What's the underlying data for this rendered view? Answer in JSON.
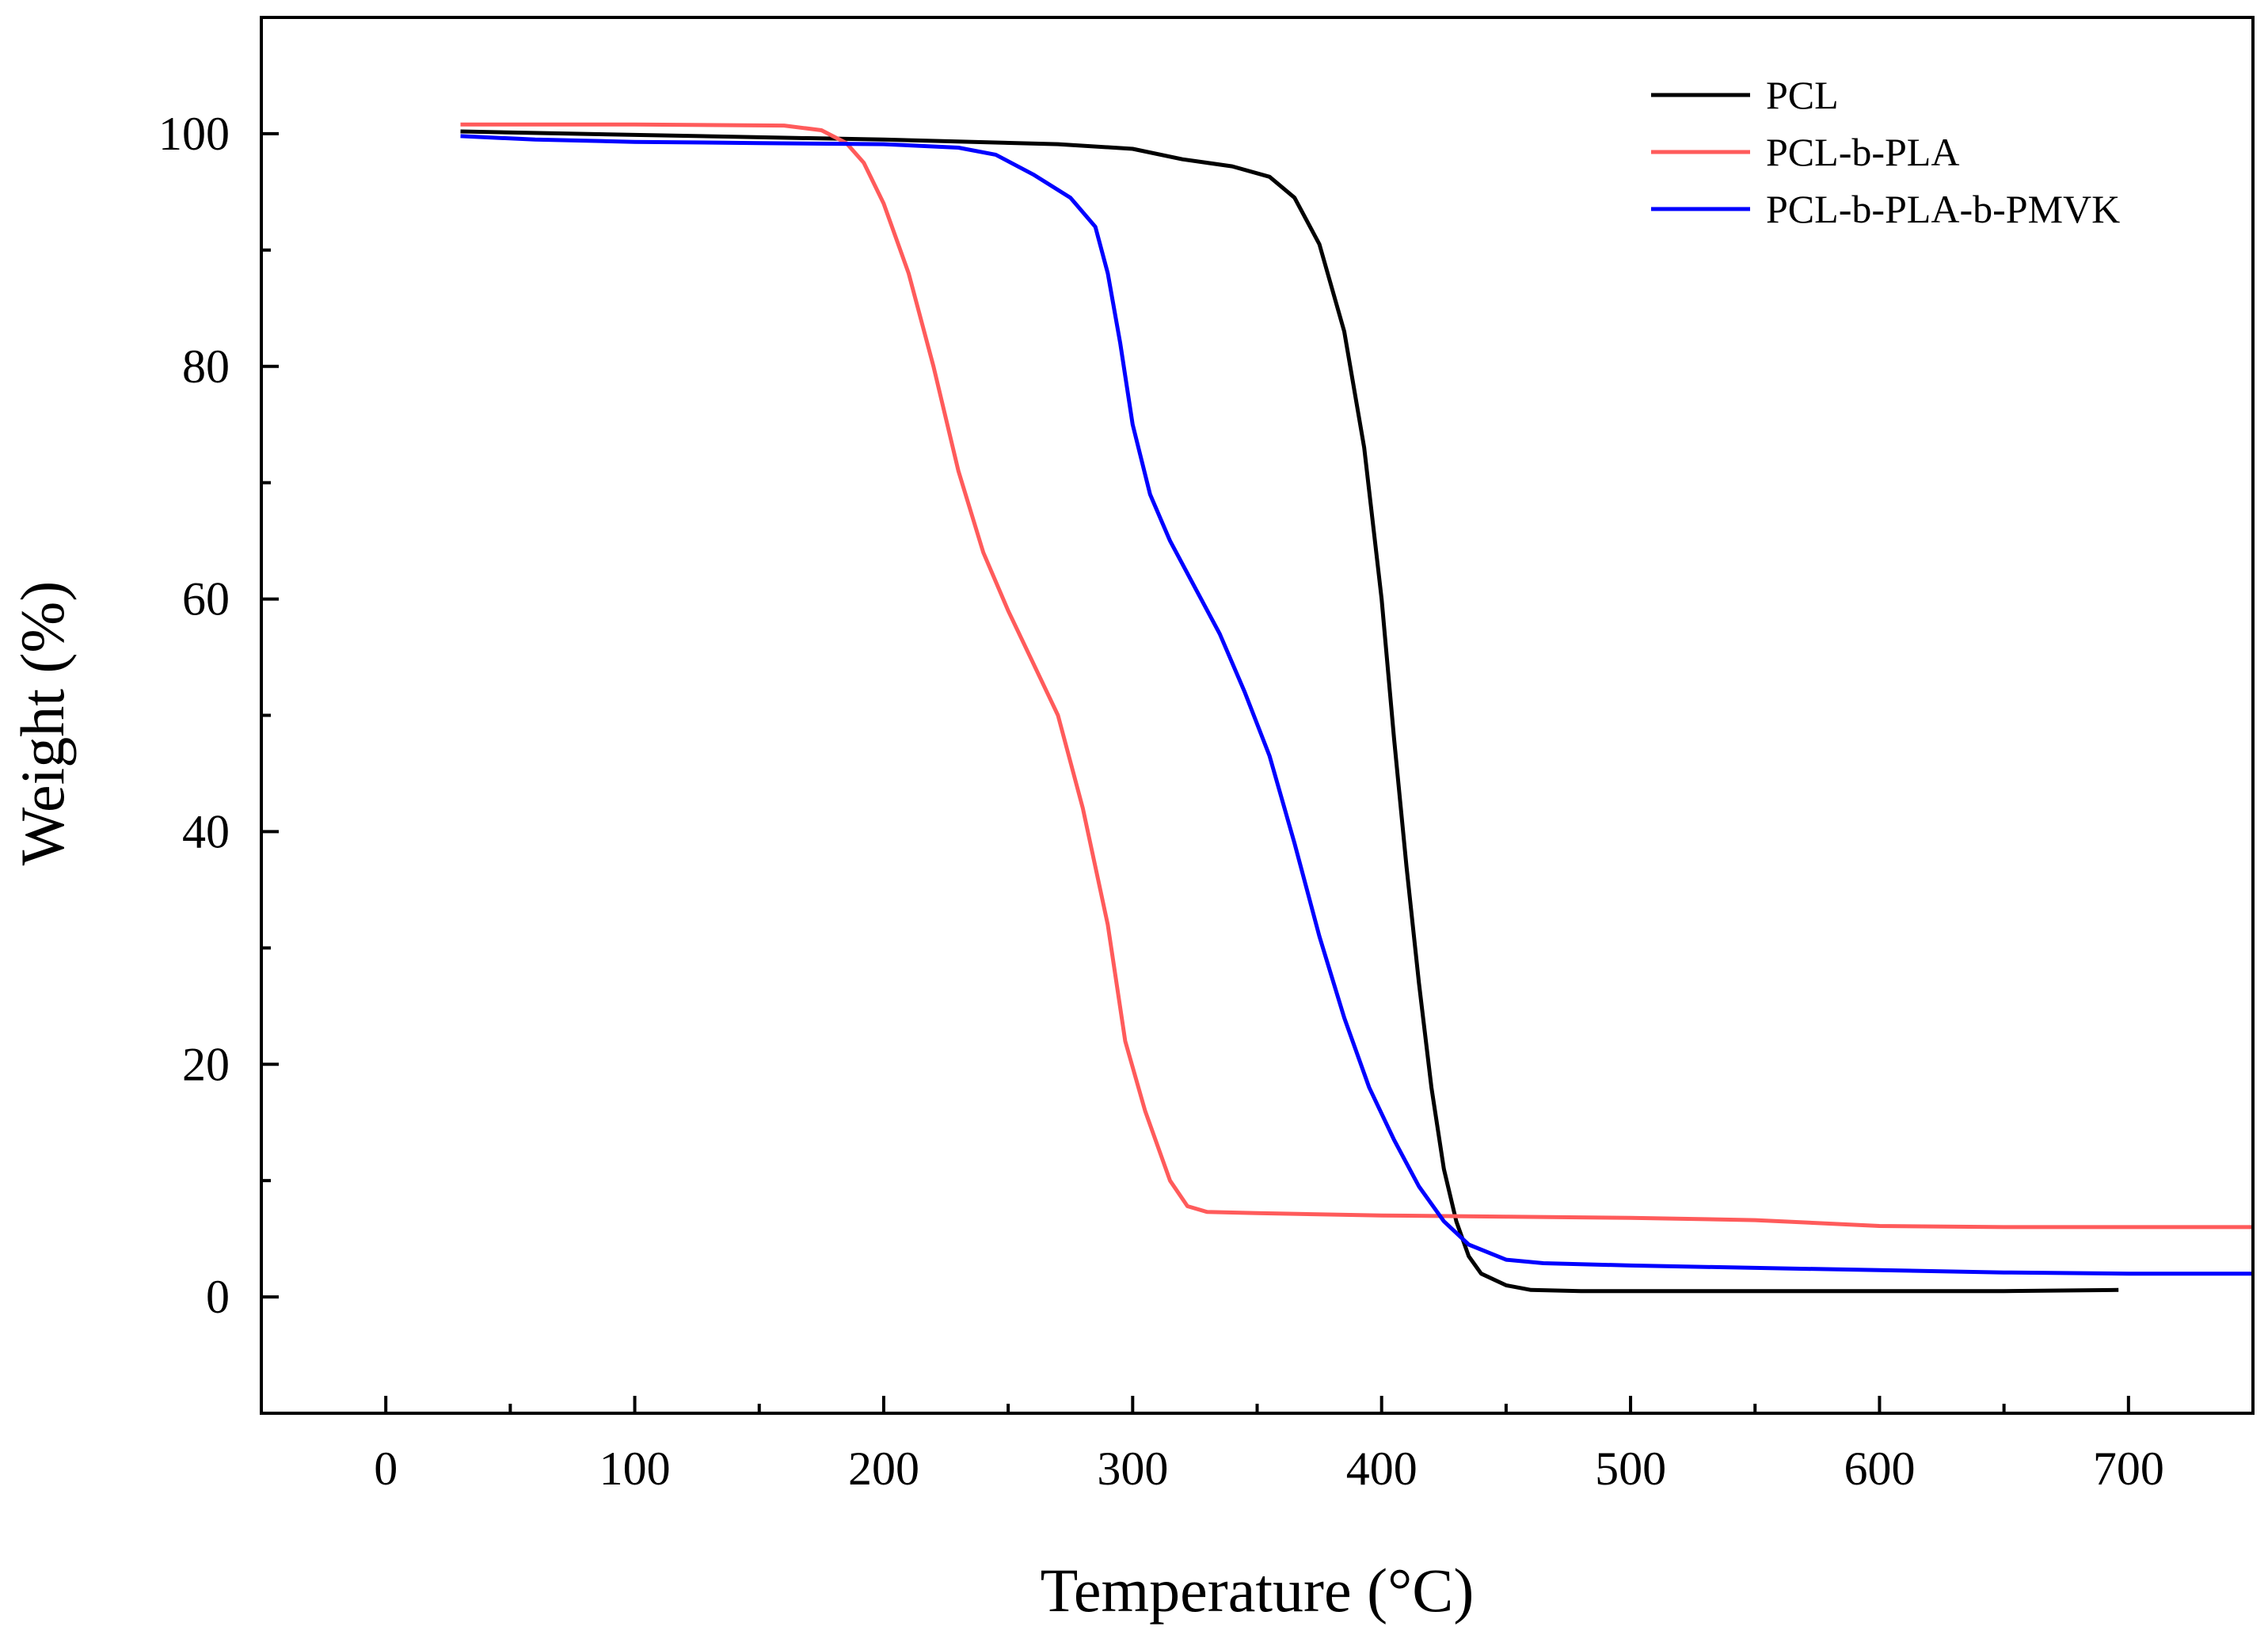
{
  "chart_data": {
    "type": "line",
    "title": "",
    "xlabel": "Temperature (°C)",
    "ylabel": "Weight (%)",
    "xlim": [
      -50,
      750
    ],
    "ylim": [
      -10,
      110
    ],
    "x_ticks": [
      0,
      100,
      200,
      300,
      400,
      500,
      600,
      700
    ],
    "y_ticks": [
      0,
      20,
      40,
      60,
      80,
      100
    ],
    "x_minor_ticks": [
      50,
      150,
      250,
      350,
      450,
      550,
      650
    ],
    "y_minor_ticks": [
      10,
      30,
      50,
      70,
      90
    ],
    "grid": false,
    "legend_position": "top-right",
    "series": [
      {
        "name": "PCL",
        "color": "#000000",
        "points": [
          [
            30,
            100.2
          ],
          [
            100,
            99.9
          ],
          [
            200,
            99.5
          ],
          [
            270,
            99.1
          ],
          [
            300,
            98.7
          ],
          [
            320,
            97.8
          ],
          [
            340,
            97.2
          ],
          [
            355,
            96.3
          ],
          [
            365,
            94.5
          ],
          [
            375,
            90.5
          ],
          [
            385,
            83
          ],
          [
            393,
            73
          ],
          [
            400,
            60
          ],
          [
            405,
            48
          ],
          [
            410,
            37
          ],
          [
            415,
            27
          ],
          [
            420,
            18
          ],
          [
            425,
            11
          ],
          [
            430,
            6.5
          ],
          [
            435,
            3.5
          ],
          [
            440,
            2
          ],
          [
            450,
            1
          ],
          [
            460,
            0.6
          ],
          [
            480,
            0.5
          ],
          [
            550,
            0.5
          ],
          [
            600,
            0.5
          ],
          [
            650,
            0.5
          ],
          [
            696,
            0.6
          ]
        ]
      },
      {
        "name": "PCL-b-PLA",
        "color": "#FF5B5B",
        "points": [
          [
            30,
            100.8
          ],
          [
            100,
            100.8
          ],
          [
            160,
            100.7
          ],
          [
            175,
            100.3
          ],
          [
            185,
            99.2
          ],
          [
            192,
            97.5
          ],
          [
            200,
            94
          ],
          [
            210,
            88
          ],
          [
            220,
            80
          ],
          [
            230,
            71
          ],
          [
            240,
            64
          ],
          [
            250,
            59
          ],
          [
            260,
            54.5
          ],
          [
            270,
            50
          ],
          [
            280,
            42
          ],
          [
            290,
            32
          ],
          [
            297,
            22
          ],
          [
            305,
            16
          ],
          [
            315,
            10
          ],
          [
            322,
            7.8
          ],
          [
            330,
            7.3
          ],
          [
            350,
            7.2
          ],
          [
            400,
            7
          ],
          [
            450,
            6.9
          ],
          [
            500,
            6.8
          ],
          [
            550,
            6.6
          ],
          [
            600,
            6.1
          ],
          [
            650,
            6
          ],
          [
            700,
            6
          ],
          [
            750,
            6
          ]
        ]
      },
      {
        "name": "PCL-b-PLA-b-PMVK",
        "color": "#0000FF",
        "points": [
          [
            30,
            99.8
          ],
          [
            60,
            99.5
          ],
          [
            100,
            99.3
          ],
          [
            150,
            99.2
          ],
          [
            200,
            99.1
          ],
          [
            230,
            98.8
          ],
          [
            245,
            98.2
          ],
          [
            260,
            96.5
          ],
          [
            275,
            94.5
          ],
          [
            285,
            92
          ],
          [
            290,
            88
          ],
          [
            295,
            82
          ],
          [
            300,
            75
          ],
          [
            307,
            69
          ],
          [
            315,
            65
          ],
          [
            325,
            61
          ],
          [
            335,
            57
          ],
          [
            345,
            52
          ],
          [
            355,
            46.5
          ],
          [
            365,
            39
          ],
          [
            375,
            31
          ],
          [
            385,
            24
          ],
          [
            395,
            18
          ],
          [
            405,
            13.5
          ],
          [
            415,
            9.5
          ],
          [
            425,
            6.5
          ],
          [
            435,
            4.5
          ],
          [
            450,
            3.2
          ],
          [
            465,
            2.9
          ],
          [
            500,
            2.7
          ],
          [
            550,
            2.5
          ],
          [
            600,
            2.3
          ],
          [
            650,
            2.1
          ],
          [
            700,
            2
          ],
          [
            750,
            2
          ]
        ]
      }
    ]
  }
}
